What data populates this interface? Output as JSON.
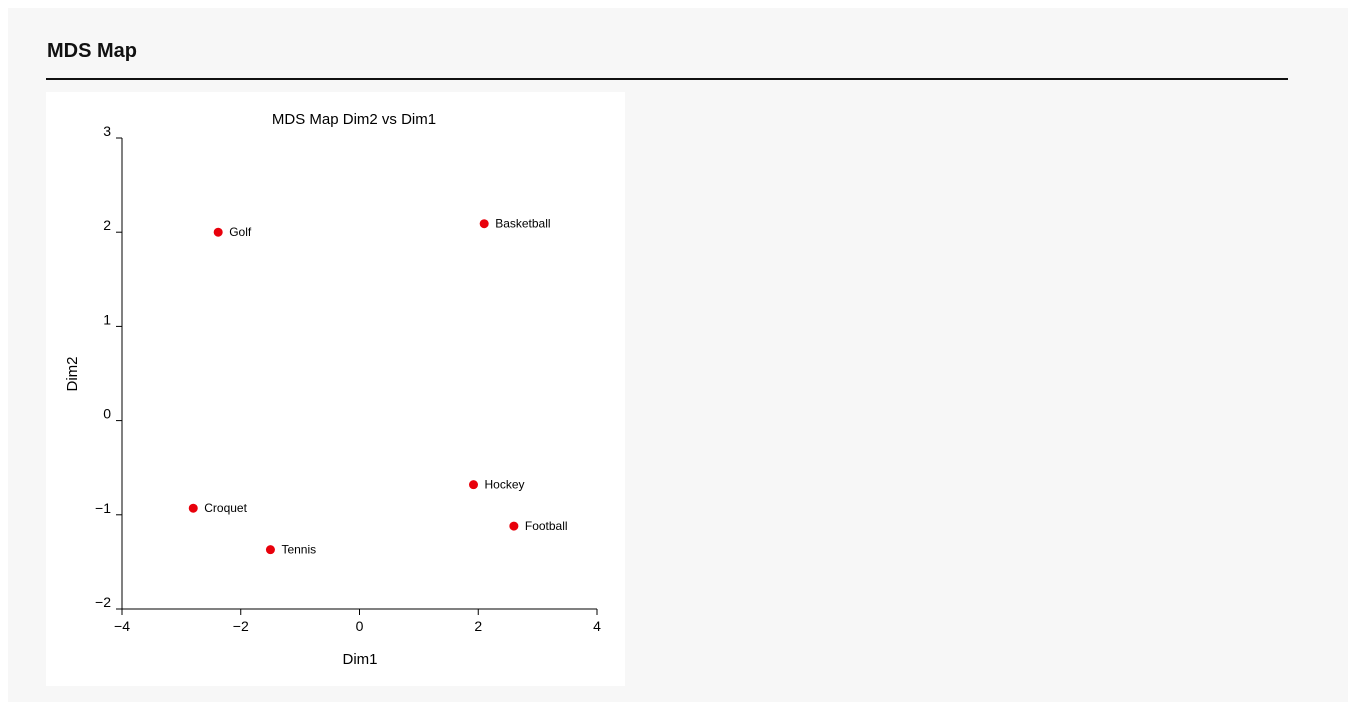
{
  "section": {
    "title": "MDS Map"
  },
  "chart_data": {
    "type": "scatter",
    "title": "MDS Map Dim2 vs Dim1",
    "xlabel": "Dim1",
    "ylabel": "Dim2",
    "xlim": [
      -4,
      4
    ],
    "ylim": [
      -2,
      3
    ],
    "xticks": [
      -4,
      -2,
      0,
      2,
      4
    ],
    "yticks": [
      -2,
      -1,
      0,
      1,
      2,
      3
    ],
    "grid": false,
    "marker_color": "#e8000b",
    "points": [
      {
        "label": "Golf",
        "x": -2.38,
        "y": 2.0
      },
      {
        "label": "Basketball",
        "x": 2.1,
        "y": 2.09
      },
      {
        "label": "Croquet",
        "x": -2.8,
        "y": -0.93
      },
      {
        "label": "Tennis",
        "x": -1.5,
        "y": -1.37
      },
      {
        "label": "Hockey",
        "x": 1.92,
        "y": -0.68
      },
      {
        "label": "Football",
        "x": 2.6,
        "y": -1.12
      }
    ]
  }
}
